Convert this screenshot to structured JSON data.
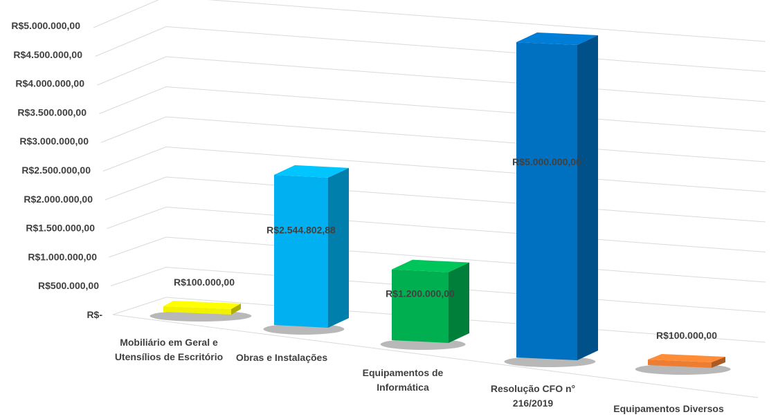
{
  "chart_data": {
    "type": "bar",
    "style": "3d-column",
    "title": "",
    "xlabel": "",
    "ylabel": "",
    "ylim": [
      0,
      5000000
    ],
    "grid": true,
    "legend": "none",
    "ytick_labels": [
      "R$-",
      "R$500.000,00",
      "R$1.000.000,00",
      "R$1.500.000,00",
      "R$2.000.000,00",
      "R$2.500.000,00",
      "R$3.000.000,00",
      "R$3.500.000,00",
      "R$4.000.000,00",
      "R$4.500.000,00",
      "R$5.000.000,00"
    ],
    "categories": [
      [
        "Mobiliário em Geral e",
        "Utensílios de Escritório"
      ],
      [
        "Obras e Instalações"
      ],
      [
        "Equipamentos de",
        "Informática"
      ],
      [
        "Resolução CFO n°",
        "216/2019"
      ],
      [
        "Equipamentos Diversos"
      ]
    ],
    "values": [
      100000,
      2544802.88,
      1200000,
      5000000,
      100000
    ],
    "data_labels": [
      "R$100.000,00",
      "R$2.544.802,88",
      "R$1.200.000,00",
      "R$5.000.000,00",
      "R$100.000,00"
    ],
    "colors": [
      "#f2f200",
      "#00b0f0",
      "#00b050",
      "#0070c0",
      "#ed7d31"
    ]
  }
}
